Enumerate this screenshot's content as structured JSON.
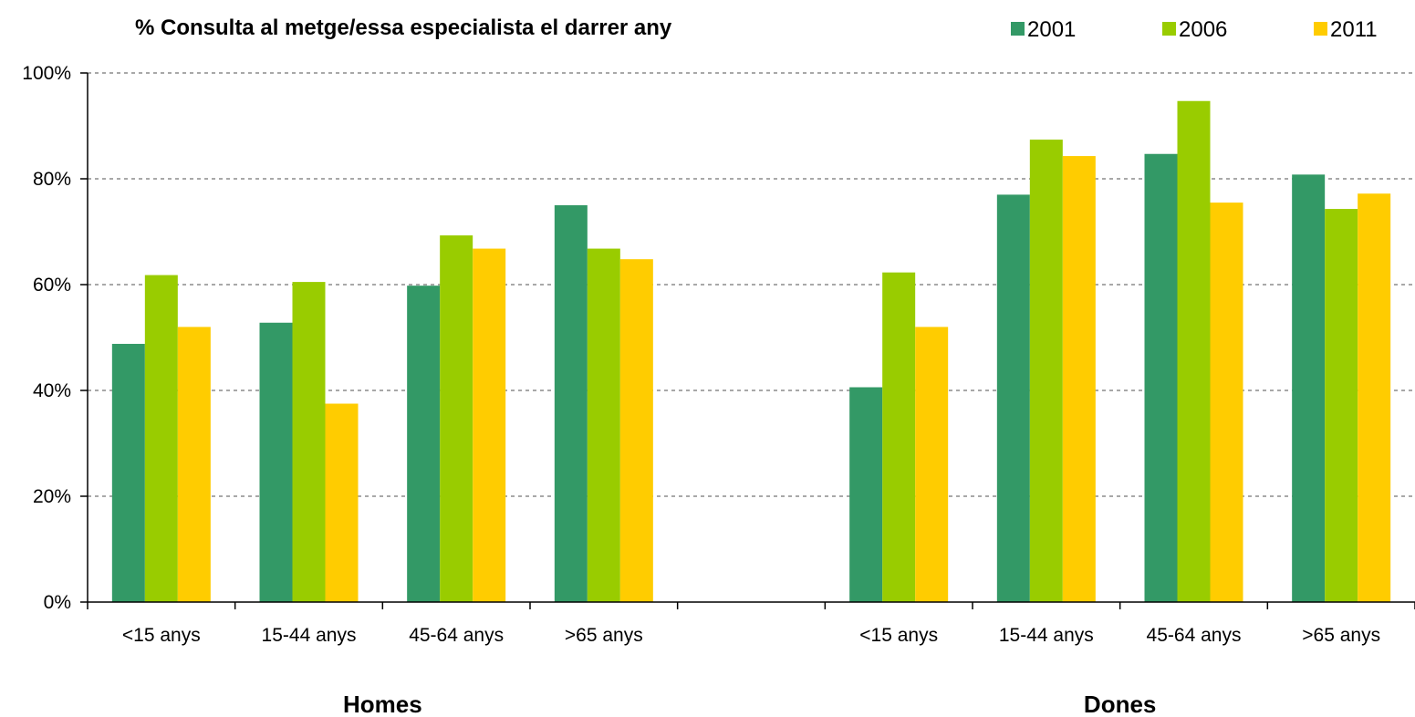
{
  "chart_data": {
    "type": "bar",
    "title": "% Consulta al metge/essa especialista el darrer any",
    "ylim": [
      0,
      100
    ],
    "yticks": [
      "0%",
      "20%",
      "40%",
      "60%",
      "80%",
      "100%"
    ],
    "grid": true,
    "legend_position": "top-right",
    "groups": [
      {
        "label": "Homes",
        "categories": [
          "<15 anys",
          "15-44 anys",
          "45-64 anys",
          ">65 anys"
        ]
      },
      {
        "label": "Dones",
        "categories": [
          "<15 anys",
          "15-44 anys",
          "45-64 anys",
          ">65 anys"
        ]
      }
    ],
    "series": [
      {
        "name": "2001",
        "color": "#339966",
        "homes": [
          48.8,
          52.8,
          59.8,
          75.0
        ],
        "dones": [
          40.6,
          77.0,
          84.7,
          80.8
        ]
      },
      {
        "name": "2006",
        "color": "#99cc00",
        "homes": [
          61.8,
          60.5,
          69.3,
          66.8
        ],
        "dones": [
          62.3,
          87.4,
          94.7,
          74.3
        ]
      },
      {
        "name": "2011",
        "color": "#ffcc00",
        "homes": [
          52.0,
          37.5,
          66.8,
          64.8
        ],
        "dones": [
          52.0,
          84.3,
          75.5,
          77.2
        ]
      }
    ]
  }
}
